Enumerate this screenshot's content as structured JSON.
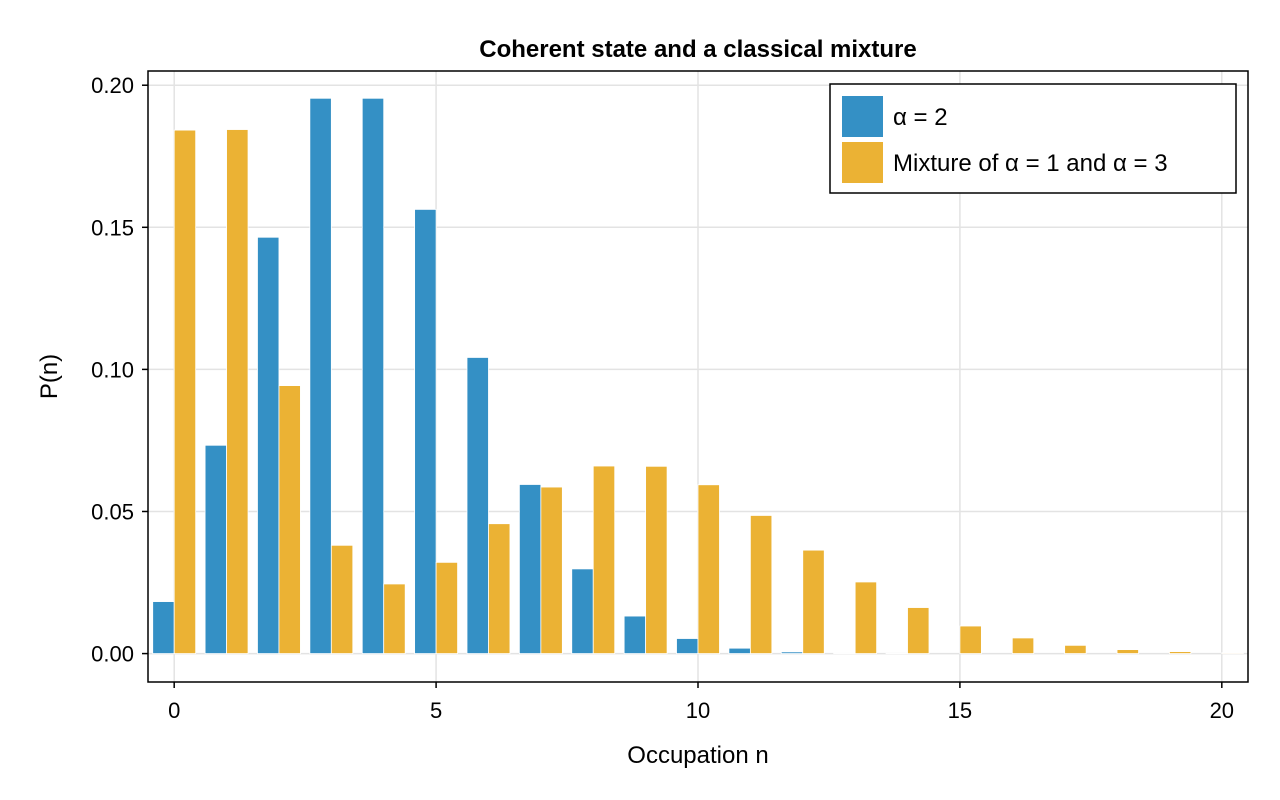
{
  "chart_data": {
    "type": "bar",
    "title": "Coherent state and a classical mixture",
    "xlabel": "Occupation n",
    "ylabel": "P(n)",
    "xlim": [
      -0.5,
      20.5
    ],
    "ylim": [
      -0.01,
      0.205
    ],
    "xticks": [
      0,
      5,
      10,
      15,
      20
    ],
    "xtick_labels": [
      "0",
      "5",
      "10",
      "15",
      "20"
    ],
    "yticks": [
      0.0,
      0.05,
      0.1,
      0.15,
      0.2
    ],
    "ytick_labels": [
      "0.00",
      "0.05",
      "0.10",
      "0.15",
      "0.20"
    ],
    "grid": true,
    "legend_position": "top-right",
    "categories": [
      0,
      1,
      2,
      3,
      4,
      5,
      6,
      7,
      8,
      9,
      10,
      11,
      12,
      13,
      14,
      15,
      16,
      17,
      18,
      19,
      20
    ],
    "series": [
      {
        "name": "α = 2",
        "color": "#3490c5",
        "values": [
          0.0183,
          0.0733,
          0.1465,
          0.1954,
          0.1954,
          0.1563,
          0.1042,
          0.0595,
          0.0298,
          0.0132,
          0.0053,
          0.0019,
          0.0006,
          0.0002,
          0.0001,
          0.0,
          0.0,
          0.0,
          0.0,
          0.0,
          0.0
        ]
      },
      {
        "name": "Mixture of α = 1 and α = 3",
        "color": "#ebb234",
        "values": [
          0.1842,
          0.1844,
          0.0943,
          0.0381,
          0.0245,
          0.0321,
          0.0457,
          0.0586,
          0.066,
          0.0659,
          0.0594,
          0.0486,
          0.0364,
          0.0252,
          0.0162,
          0.0097,
          0.0055,
          0.0029,
          0.0014,
          0.0007,
          0.0003
        ]
      }
    ]
  }
}
